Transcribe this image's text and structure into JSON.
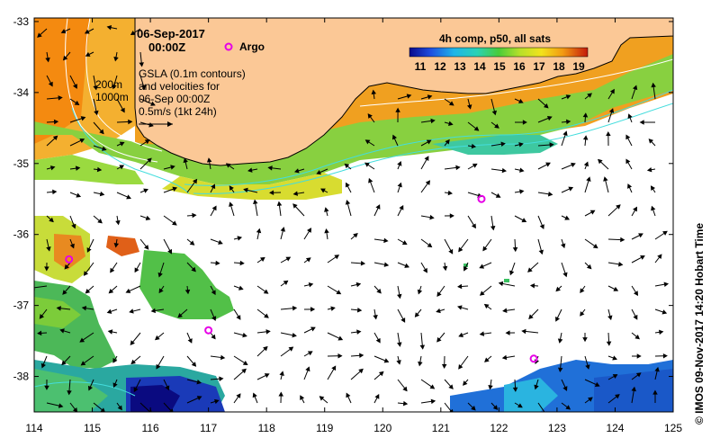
{
  "map": {
    "date": "06-Sep-2017",
    "time": "00:00Z",
    "argo_label": "Argo",
    "gsla_lines": [
      "GSLA (0.1m contours)",
      "and velocities for",
      "06-Sep 00:00Z",
      "0.5m/s (1kt 24h)"
    ],
    "isobaths": [
      "200m",
      "1000m"
    ],
    "colorbar_title": "4h comp, p50, all sats",
    "colorbar_ticks": [
      "11",
      "12",
      "13",
      "14",
      "15",
      "16",
      "17",
      "18",
      "19"
    ],
    "credit": "© IMOS 09-Nov-2017 14:20 Hobart Time",
    "lon_ticks": [
      "114",
      "115",
      "116",
      "117",
      "118",
      "119",
      "120",
      "121",
      "122",
      "123",
      "124",
      "125"
    ],
    "lat_ticks": [
      "-33",
      "-34",
      "-35",
      "-36",
      "-37",
      "-38"
    ],
    "argo_floats": [
      {
        "lon": 121.7,
        "lat": -35.5
      },
      {
        "lon": 114.6,
        "lat": -36.35
      },
      {
        "lon": 117.0,
        "lat": -37.35
      },
      {
        "lon": 122.6,
        "lat": -37.75
      }
    ],
    "colors": {
      "land": "#fbc896",
      "ocean_nodata": "#ffffff",
      "argo": "#e600e6",
      "contour": "#44dddd"
    }
  }
}
